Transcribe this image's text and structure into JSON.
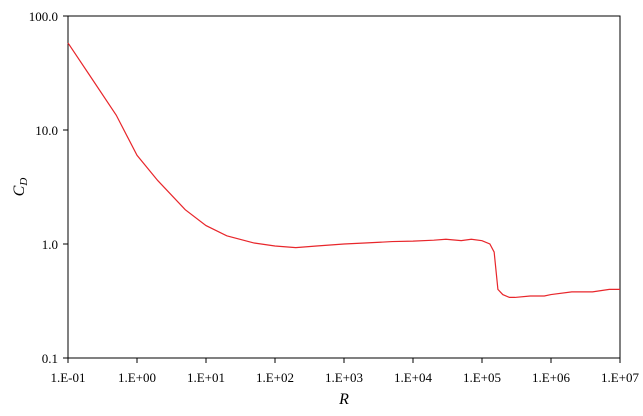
{
  "chart_data": {
    "type": "line",
    "title": "",
    "xlabel": "R",
    "ylabel": {
      "main": "C",
      "subscript": "D"
    },
    "x_scale": "log",
    "y_scale": "log",
    "xlim": [
      0.1,
      10000000
    ],
    "ylim": [
      0.1,
      100
    ],
    "grid": false,
    "legend": "none",
    "line_color": "#e8262b",
    "x_ticks": [
      {
        "value": 0.1,
        "label": "1.E-01"
      },
      {
        "value": 1,
        "label": "1.E+00"
      },
      {
        "value": 10,
        "label": "1.E+01"
      },
      {
        "value": 100,
        "label": "1.E+02"
      },
      {
        "value": 1000,
        "label": "1.E+03"
      },
      {
        "value": 10000,
        "label": "1.E+04"
      },
      {
        "value": 100000,
        "label": "1.E+05"
      },
      {
        "value": 1000000,
        "label": "1.E+06"
      },
      {
        "value": 10000000,
        "label": "1.E+07"
      }
    ],
    "y_ticks": [
      {
        "value": 0.1,
        "label": "0.1"
      },
      {
        "value": 1,
        "label": "1.0"
      },
      {
        "value": 10,
        "label": "10.0"
      },
      {
        "value": 100,
        "label": "100.0"
      }
    ],
    "series": [
      {
        "points": [
          [
            0.1,
            58
          ],
          [
            0.2,
            31
          ],
          [
            0.5,
            13.5
          ],
          [
            1,
            6.0
          ],
          [
            2,
            3.6
          ],
          [
            5,
            2.0
          ],
          [
            10,
            1.45
          ],
          [
            20,
            1.18
          ],
          [
            50,
            1.02
          ],
          [
            100,
            0.96
          ],
          [
            200,
            0.93
          ],
          [
            400,
            0.96
          ],
          [
            1000,
            1.0
          ],
          [
            2000,
            1.02
          ],
          [
            5000,
            1.05
          ],
          [
            10000,
            1.06
          ],
          [
            20000,
            1.08
          ],
          [
            30000,
            1.1
          ],
          [
            50000,
            1.07
          ],
          [
            70000,
            1.1
          ],
          [
            100000,
            1.07
          ],
          [
            130000,
            1.0
          ],
          [
            150000,
            0.85
          ],
          [
            170000,
            0.4
          ],
          [
            200000,
            0.36
          ],
          [
            250000,
            0.34
          ],
          [
            300000,
            0.34
          ],
          [
            500000,
            0.35
          ],
          [
            800000,
            0.35
          ],
          [
            1000000,
            0.36
          ],
          [
            2000000,
            0.38
          ],
          [
            4000000,
            0.38
          ],
          [
            7000000,
            0.4
          ],
          [
            10000000,
            0.4
          ]
        ]
      }
    ]
  }
}
